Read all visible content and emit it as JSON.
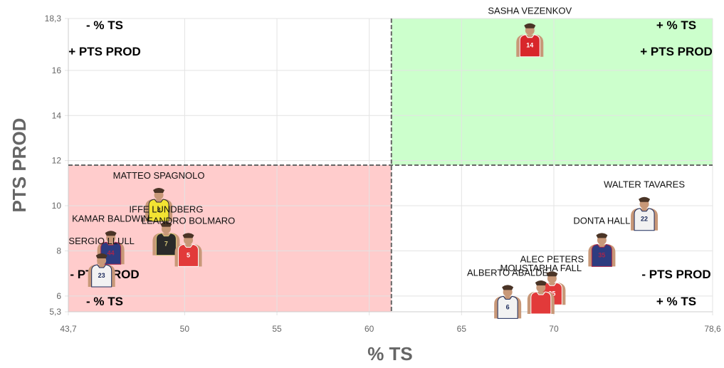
{
  "chart_data": {
    "type": "scatter",
    "xlabel": "% TS",
    "ylabel": "PTS PROD",
    "xlim": [
      43.7,
      78.6
    ],
    "ylim": [
      5.3,
      18.3
    ],
    "x_ticks": [
      "43,7",
      "50",
      "55",
      "60",
      "65",
      "70",
      "78,6"
    ],
    "x_tick_values": [
      43.7,
      50,
      55,
      60,
      65,
      70,
      78.6
    ],
    "y_ticks": [
      "5,3",
      "6",
      "8",
      "10",
      "12",
      "14",
      "16",
      "18,3"
    ],
    "y_tick_values": [
      5.3,
      6,
      8,
      10,
      12,
      14,
      16,
      18.3
    ],
    "grid": true,
    "reference_lines": {
      "x": 61.2,
      "y": 11.8
    },
    "quadrant_colors": {
      "top_right": "#ccffcc",
      "bottom_left": "#ffcccc"
    },
    "quadrant_labels": {
      "top_left": [
        "- % TS",
        "+ PTS PROD"
      ],
      "top_right": [
        "+ % TS",
        "+ PTS PROD"
      ],
      "bottom_left": [
        "- PTS PROD",
        "- % TS"
      ],
      "bottom_right": [
        "- PTS PROD",
        "+ % TS"
      ]
    },
    "points": [
      {
        "name": "SASHA VEZENKOV",
        "x": 68.7,
        "y": 17.3,
        "jersey": "14",
        "colors": [
          "#d8262b",
          "#ffffff"
        ]
      },
      {
        "name": "MATTEO SPAGNOLO",
        "x": 48.6,
        "y": 10.0,
        "jersey": "3",
        "colors": [
          "#f2e332",
          "#2a2a2a"
        ]
      },
      {
        "name": "IFFE LUNDBERG",
        "x": 49.0,
        "y": 8.5,
        "jersey": "7",
        "colors": [
          "#2a2a2a",
          "#d9c97a"
        ]
      },
      {
        "name": "LEANDRO BOLMARO",
        "x": 50.2,
        "y": 8.0,
        "jersey": "5",
        "colors": [
          "#e23a3a",
          "#ffffff"
        ]
      },
      {
        "name": "KAMAR BALDWIN",
        "x": 46.0,
        "y": 8.1,
        "jersey": "44",
        "colors": [
          "#2d3c80",
          "#a8264b"
        ]
      },
      {
        "name": "SERGIO LLULL",
        "x": 45.5,
        "y": 7.1,
        "jersey": "23",
        "colors": [
          "#f2f2f2",
          "#1b2a5b"
        ]
      },
      {
        "name": "WALTER TAVARES",
        "x": 74.9,
        "y": 9.6,
        "jersey": "22",
        "colors": [
          "#f2f2f2",
          "#1b2a5b"
        ]
      },
      {
        "name": "DONTA HALL",
        "x": 72.6,
        "y": 8.0,
        "jersey": "35",
        "colors": [
          "#2d3c80",
          "#a8264b"
        ]
      },
      {
        "name": "ALEC PETERS",
        "x": 69.9,
        "y": 6.3,
        "jersey": "25",
        "colors": [
          "#e23a3a",
          "#ffffff"
        ]
      },
      {
        "name": "MOUSTAPHA FALL",
        "x": 69.3,
        "y": 5.9,
        "jersey": "",
        "colors": [
          "#e23a3a",
          "#ffffff"
        ]
      },
      {
        "name": "ALBERTO ABALDE",
        "x": 67.5,
        "y": 5.7,
        "jersey": "6",
        "colors": [
          "#f2f2f2",
          "#1b2a5b"
        ]
      }
    ]
  }
}
